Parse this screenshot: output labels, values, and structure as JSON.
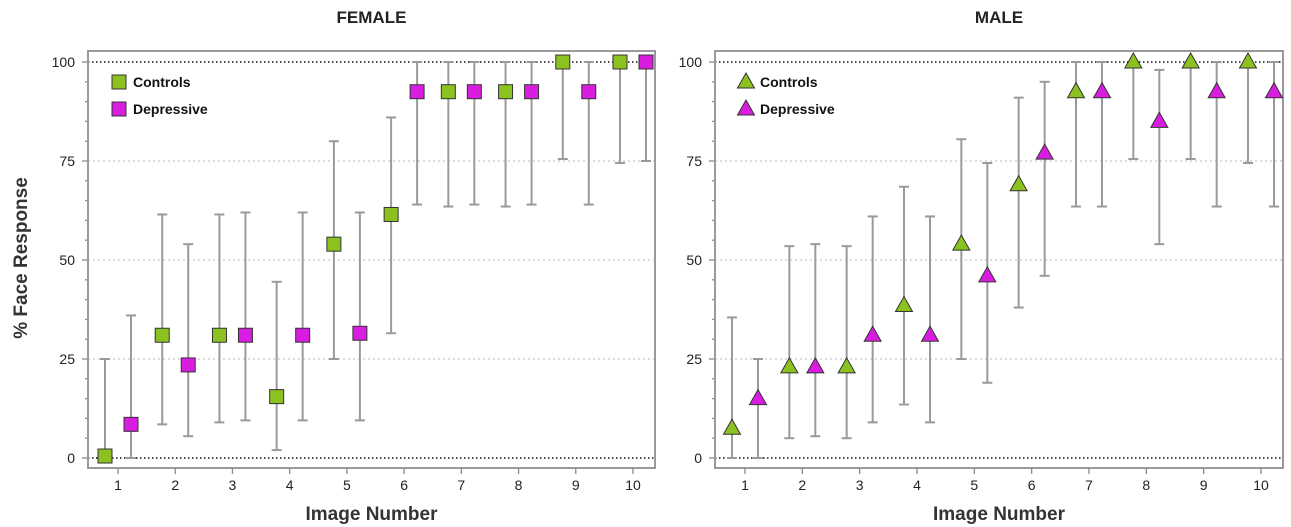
{
  "ylabel": "% Face Response",
  "colors": {
    "controls": "#8cc21f",
    "depressive": "#d91de0",
    "errorbar": "#9a9a9a",
    "frame": "#9a9a9a"
  },
  "chart_data": [
    {
      "type": "scatter",
      "title": "FEMALE",
      "xlabel": "Image Number",
      "ylabel": "% Face Response",
      "categories": [
        "1",
        "2",
        "3",
        "4",
        "5",
        "6",
        "7",
        "8",
        "9",
        "10"
      ],
      "ylim": [
        0,
        100
      ],
      "yticks": [
        "0",
        "25",
        "50",
        "75",
        "100"
      ],
      "marker": "square",
      "legend": "top-left",
      "grid": "horizontal dotted at 25, 50, 75; black dotted at 0 and 100",
      "series": [
        {
          "name": "Controls",
          "values": [
            0.5,
            31,
            31,
            15.5,
            54,
            61.5,
            92.5,
            92.5,
            100,
            100
          ],
          "error_low": [
            0,
            8.5,
            9,
            2,
            25,
            31.5,
            63.5,
            63.5,
            75.5,
            74.5
          ],
          "error_high": [
            25,
            61.5,
            61.5,
            44.5,
            80,
            86,
            100,
            100,
            100,
            100
          ]
        },
        {
          "name": "Depressive",
          "values": [
            8.5,
            23.5,
            31,
            31,
            31.5,
            92.5,
            92.5,
            92.5,
            92.5,
            100
          ],
          "error_low": [
            0,
            5.5,
            9.5,
            9.5,
            9.5,
            64,
            64,
            64,
            64,
            75
          ],
          "error_high": [
            36,
            54,
            62,
            62,
            62,
            100,
            100,
            100,
            100,
            100
          ]
        }
      ]
    },
    {
      "type": "scatter",
      "title": "MALE",
      "xlabel": "Image Number",
      "ylabel": "",
      "categories": [
        "1",
        "2",
        "3",
        "4",
        "5",
        "6",
        "7",
        "8",
        "9",
        "10"
      ],
      "ylim": [
        0,
        100
      ],
      "yticks": [
        "0",
        "25",
        "50",
        "75",
        "100"
      ],
      "marker": "triangle",
      "legend": "top-left",
      "grid": "horizontal dotted at 25, 50, 75; black dotted at 0 and 100",
      "series": [
        {
          "name": "Controls",
          "values": [
            7.5,
            23,
            23,
            38.5,
            54,
            69,
            92.5,
            100,
            100,
            100
          ],
          "error_low": [
            0,
            5,
            5,
            13.5,
            25,
            38,
            63.5,
            75.5,
            75.5,
            74.5
          ],
          "error_high": [
            35.5,
            53.5,
            53.5,
            68.5,
            80.5,
            91,
            100,
            100,
            100,
            100
          ]
        },
        {
          "name": "Depressive",
          "values": [
            15,
            23,
            31,
            31,
            46,
            77,
            92.5,
            85,
            92.5,
            92.5
          ],
          "error_low": [
            0,
            5.5,
            9,
            9,
            19,
            46,
            63.5,
            54,
            63.5,
            63.5
          ],
          "error_high": [
            25,
            54,
            61,
            61,
            74.5,
            95,
            100,
            98,
            100,
            100
          ]
        }
      ]
    }
  ]
}
